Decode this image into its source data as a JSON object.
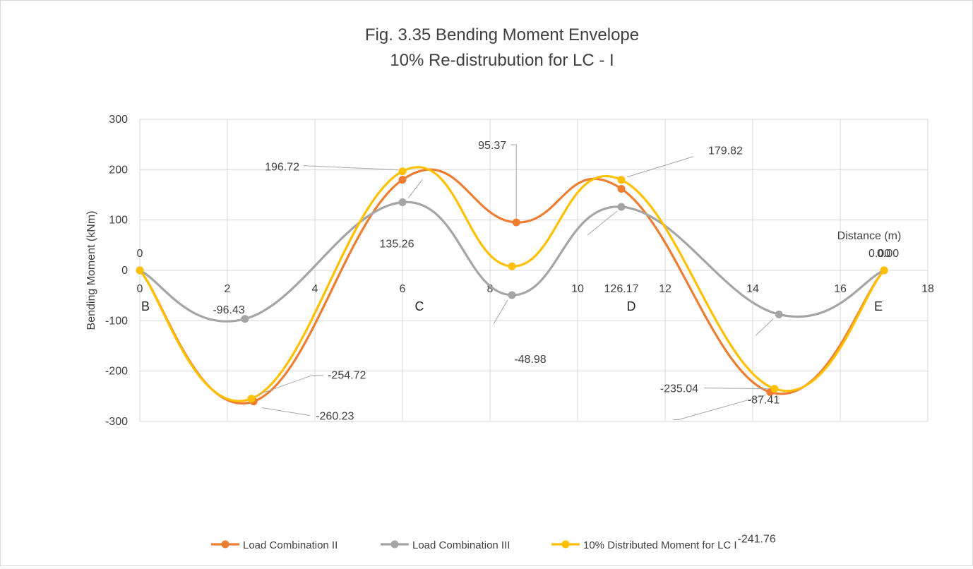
{
  "chart_data": {
    "type": "line",
    "title": "Fig. 3.35 Bending Moment Envelope",
    "subtitle": "10% Re-distrubution for LC - I",
    "xlabel": "Distance (m)",
    "ylabel": "Bending Moment (kNm)",
    "xlim": [
      0,
      18
    ],
    "ylim": [
      -300,
      300
    ],
    "x_ticks": [
      "0",
      "2",
      "4",
      "6",
      "8",
      "10",
      "12",
      "14",
      "16",
      "18"
    ],
    "y_ticks": [
      "300",
      "200",
      "100",
      "0",
      "-100",
      "-200",
      "-300"
    ],
    "grid": true,
    "legend_position": "bottom",
    "support_labels": [
      {
        "label": "B",
        "x": 0
      },
      {
        "label": "C",
        "x": 6
      },
      {
        "label": "D",
        "x": 11
      },
      {
        "label": "E",
        "x": 17
      }
    ],
    "series": [
      {
        "name": "Load Combination II",
        "color": "#ED7D31",
        "x": [
          0,
          2.6,
          6,
          8.6,
          11,
          14.4,
          17
        ],
        "values": [
          0,
          -260.23,
          180,
          95.37,
          162,
          -241.76,
          0
        ]
      },
      {
        "name": "Load Combination III",
        "color": "#A5A5A5",
        "x": [
          0,
          2.4,
          6,
          8.5,
          11,
          14.6,
          17
        ],
        "values": [
          0,
          -96.43,
          135.26,
          -48.98,
          126.17,
          -87.41,
          0
        ]
      },
      {
        "name": "10% Distributed Moment  for LC I",
        "color": "#FFC000",
        "x": [
          0,
          2.55,
          6,
          8.5,
          11,
          14.5,
          17
        ],
        "values": [
          0,
          -254.72,
          196.72,
          8,
          179.82,
          -235.04,
          0
        ]
      }
    ],
    "annotations": [
      {
        "text": "0",
        "series": 0,
        "point": 0
      },
      {
        "text": "-260.23",
        "series": 0,
        "point": 1
      },
      {
        "text": "95.37",
        "series": 0,
        "point": 3
      },
      {
        "text": "-241.76",
        "series": 0,
        "point": 5
      },
      {
        "text": "0.00",
        "series": 0,
        "point": 6
      },
      {
        "text": "-96.43",
        "series": 1,
        "point": 1
      },
      {
        "text": "135.26",
        "series": 1,
        "point": 2
      },
      {
        "text": "-48.98",
        "series": 1,
        "point": 3
      },
      {
        "text": "126.17",
        "series": 1,
        "point": 4
      },
      {
        "text": "-87.41",
        "series": 1,
        "point": 5
      },
      {
        "text": "0.00",
        "series": 1,
        "point": 6
      },
      {
        "text": "-254.72",
        "series": 2,
        "point": 1
      },
      {
        "text": "196.72",
        "series": 2,
        "point": 2
      },
      {
        "text": "179.82",
        "series": 2,
        "point": 4
      },
      {
        "text": "-235.04",
        "series": 2,
        "point": 5
      }
    ]
  }
}
